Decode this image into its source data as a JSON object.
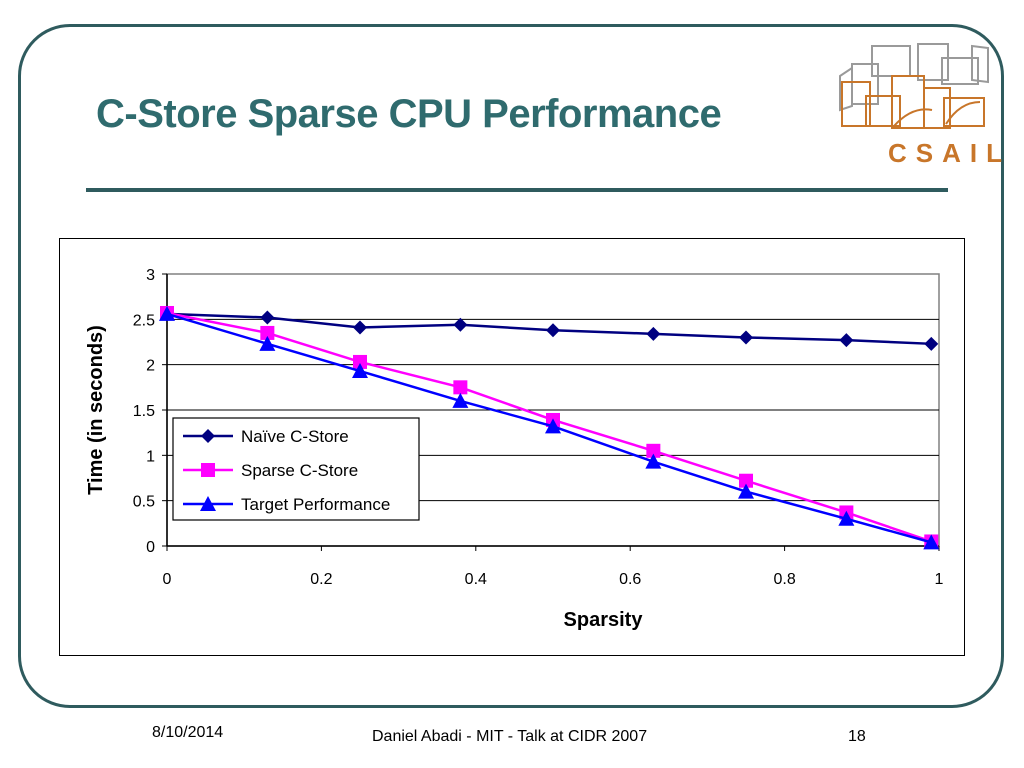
{
  "slide": {
    "title": "C-Store Sparse CPU Performance",
    "logo_text": "CSAIL",
    "footer_date": "8/10/2014",
    "footer_center": "Daniel Abadi - MIT - Talk at CIDR 2007",
    "page_number": "18"
  },
  "colors": {
    "title": "#2f6b6e",
    "frame": "#2f5b5e",
    "logo": "#c8762a",
    "naive": "#000080",
    "sparse": "#ff00ff",
    "target": "#0000ff"
  },
  "chart_data": {
    "type": "line",
    "title": "",
    "xlabel": "Sparsity",
    "ylabel": "Time (in seconds)",
    "xlim": [
      0,
      1
    ],
    "ylim": [
      0,
      3
    ],
    "xticks": [
      "0",
      "0.2",
      "0.4",
      "0.6",
      "0.8",
      "1"
    ],
    "yticks": [
      "0",
      "0.5",
      "1",
      "1.5",
      "2",
      "2.5",
      "3"
    ],
    "grid": "horizontal",
    "legend_position": "bottom-left",
    "series": [
      {
        "name": "Naïve C-Store",
        "marker": "diamond",
        "color": "#000080",
        "x": [
          0,
          0.13,
          0.25,
          0.38,
          0.5,
          0.63,
          0.75,
          0.88,
          0.99
        ],
        "y": [
          2.56,
          2.52,
          2.41,
          2.44,
          2.38,
          2.34,
          2.3,
          2.27,
          2.23
        ]
      },
      {
        "name": "Sparse C-Store",
        "marker": "square",
        "color": "#ff00ff",
        "x": [
          0,
          0.13,
          0.25,
          0.38,
          0.5,
          0.63,
          0.75,
          0.88,
          0.99
        ],
        "y": [
          2.57,
          2.35,
          2.03,
          1.75,
          1.39,
          1.05,
          0.72,
          0.37,
          0.05
        ]
      },
      {
        "name": "Target Performance",
        "marker": "triangle",
        "color": "#0000ff",
        "x": [
          0,
          0.13,
          0.25,
          0.38,
          0.5,
          0.63,
          0.75,
          0.88,
          0.99
        ],
        "y": [
          2.56,
          2.23,
          1.93,
          1.6,
          1.32,
          0.93,
          0.6,
          0.3,
          0.04
        ]
      }
    ]
  }
}
